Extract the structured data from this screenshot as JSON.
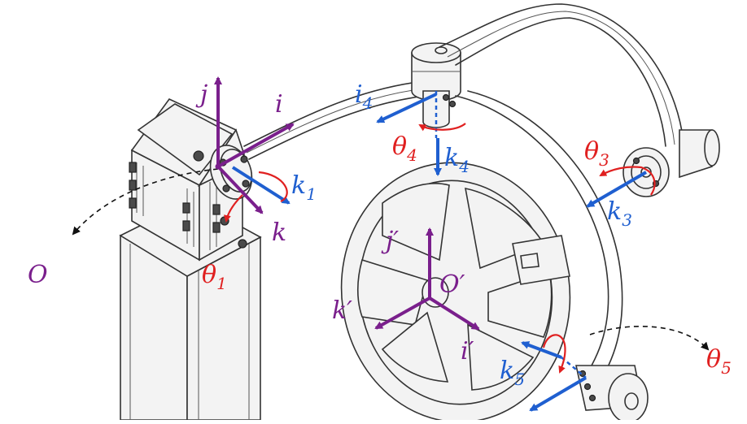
{
  "colors": {
    "purple": "#7a1f8c",
    "blue": "#1f5fd0",
    "red": "#e02020",
    "dark": "#222222"
  },
  "frames": {
    "base": {
      "origin_label": "O",
      "axis_i": "i",
      "axis_j": "j",
      "axis_k": "k"
    },
    "platform": {
      "origin_label": "O′",
      "axis_i": "i′",
      "axis_j": "j′",
      "axis_k": "k′"
    }
  },
  "joints": {
    "j1": {
      "axis": "k",
      "axis_sub": "1",
      "angle": "θ",
      "angle_sub": "1"
    },
    "j3": {
      "axis": "k",
      "axis_sub": "3",
      "angle": "θ",
      "angle_sub": "3"
    },
    "j4": {
      "axis": "k",
      "axis_sub": "4",
      "angle": "θ",
      "angle_sub": "4",
      "side_axis": "i",
      "side_axis_sub": "4"
    },
    "j5": {
      "axis": "k",
      "axis_sub": "5",
      "angle": "θ",
      "angle_sub": "5"
    }
  }
}
